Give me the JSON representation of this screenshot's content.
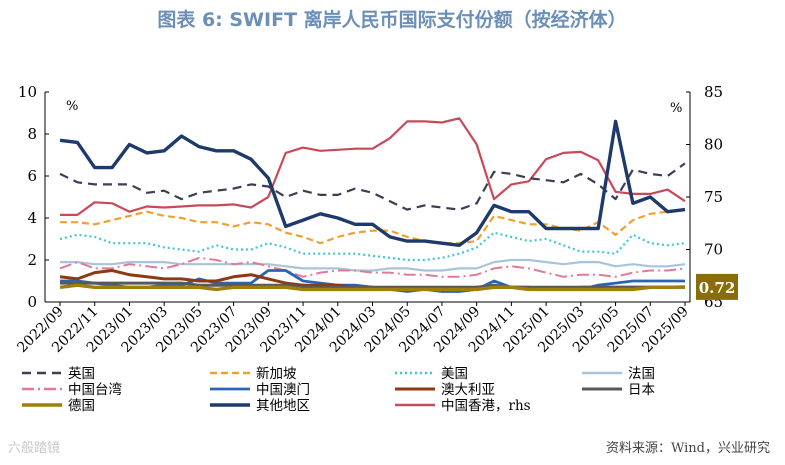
{
  "chart_data": {
    "type": "line",
    "title": "图表 6:  SWIFT 离岸人民币国际支付份额（按经济体）",
    "left_unit": "%",
    "right_unit": "%",
    "source": "资料来源：Wind，兴业研究",
    "watermark": "六般踏镜",
    "ylim_left": [
      0,
      10
    ],
    "yticks_left": [
      "0",
      "2",
      "4",
      "6",
      "8",
      "10"
    ],
    "ylim_right": [
      65,
      85
    ],
    "yticks_right": [
      "65",
      "70",
      "75",
      "80",
      "85"
    ],
    "x_labels": [
      "2022/09",
      "2022/11",
      "2023/01",
      "2023/03",
      "2023/05",
      "2023/07",
      "2023/09",
      "2023/11",
      "2024/01",
      "2024/03",
      "2024/05",
      "2024/07",
      "2024/09",
      "2024/11",
      "2025/01",
      "2025/03",
      "2025/05",
      "2025/07",
      "2025/09"
    ],
    "end_label": "0.72",
    "series": [
      {
        "key": "uk",
        "name": "英国",
        "color": "#3d3d55",
        "dash": "9,6",
        "width": 2.2,
        "axis": "left",
        "values": [
          6.1,
          5.7,
          5.6,
          5.6,
          5.6,
          5.2,
          5.3,
          4.9,
          5.2,
          5.3,
          5.4,
          5.6,
          5.5,
          5.0,
          5.3,
          5.1,
          5.1,
          5.4,
          5.2,
          4.8,
          4.4,
          4.6,
          4.5,
          4.4,
          4.7,
          6.2,
          6.1,
          5.9,
          5.8,
          5.7,
          6.1,
          5.6,
          4.9,
          6.3,
          6.1,
          6.0,
          6.6
        ]
      },
      {
        "key": "singapore",
        "name": "新加坡",
        "color": "#f0a030",
        "dash": "7,4",
        "width": 2.2,
        "axis": "left",
        "values": [
          3.8,
          3.8,
          3.7,
          3.9,
          4.1,
          4.3,
          4.1,
          4.0,
          3.8,
          3.8,
          3.6,
          3.8,
          3.7,
          3.3,
          3.1,
          2.8,
          3.1,
          3.3,
          3.4,
          3.4,
          3.1,
          2.9,
          2.8,
          2.8,
          2.9,
          4.1,
          3.9,
          3.7,
          3.7,
          3.5,
          3.4,
          3.8,
          3.2,
          3.9,
          4.2,
          4.3,
          4.4
        ]
      },
      {
        "key": "us",
        "name": "美国",
        "color": "#3cc6d6",
        "dash": "2,3",
        "width": 2.2,
        "axis": "left",
        "values": [
          3.0,
          3.2,
          3.1,
          2.8,
          2.8,
          2.8,
          2.6,
          2.5,
          2.4,
          2.7,
          2.5,
          2.5,
          2.8,
          2.6,
          2.3,
          2.3,
          2.3,
          2.3,
          2.2,
          2.1,
          2.0,
          2.0,
          2.1,
          2.3,
          2.6,
          3.3,
          3.1,
          2.9,
          3.0,
          2.7,
          2.4,
          2.4,
          2.3,
          3.2,
          2.8,
          2.7,
          2.8
        ]
      },
      {
        "key": "france",
        "name": "法国",
        "color": "#a9c3db",
        "dash": "",
        "width": 2.2,
        "axis": "left",
        "values": [
          1.9,
          1.9,
          1.8,
          1.8,
          1.9,
          1.9,
          1.9,
          1.8,
          1.8,
          1.8,
          1.8,
          1.8,
          1.8,
          1.7,
          1.6,
          1.6,
          1.6,
          1.5,
          1.5,
          1.6,
          1.6,
          1.5,
          1.5,
          1.6,
          1.6,
          1.9,
          2.0,
          2.0,
          1.9,
          1.8,
          1.9,
          1.9,
          1.7,
          1.8,
          1.7,
          1.7,
          1.8
        ]
      },
      {
        "key": "taiwan",
        "name": "中国台湾",
        "color": "#e27a96",
        "dash": "12,4,2,4",
        "width": 2.0,
        "axis": "left",
        "values": [
          1.6,
          1.9,
          1.6,
          1.6,
          1.8,
          1.7,
          1.6,
          1.8,
          2.1,
          2.0,
          1.8,
          1.9,
          1.7,
          1.5,
          1.2,
          1.4,
          1.5,
          1.5,
          1.4,
          1.4,
          1.3,
          1.3,
          1.2,
          1.2,
          1.3,
          1.6,
          1.7,
          1.6,
          1.4,
          1.2,
          1.3,
          1.3,
          1.2,
          1.4,
          1.5,
          1.5,
          1.6
        ]
      },
      {
        "key": "macau",
        "name": "中国澳门",
        "color": "#2a65b4",
        "dash": "",
        "width": 2.8,
        "axis": "left",
        "values": [
          1.0,
          1.0,
          0.9,
          0.8,
          0.7,
          0.7,
          0.8,
          0.8,
          1.1,
          0.9,
          0.9,
          0.9,
          1.5,
          1.5,
          1.0,
          0.9,
          0.8,
          0.8,
          0.7,
          0.6,
          0.5,
          0.6,
          0.5,
          0.5,
          0.6,
          1.0,
          0.7,
          0.6,
          0.6,
          0.6,
          0.6,
          0.8,
          0.9,
          1.0,
          1.0,
          1.0,
          1.0
        ]
      },
      {
        "key": "australia",
        "name": "澳大利亚",
        "color": "#8b3a12",
        "dash": "",
        "width": 3.0,
        "axis": "left",
        "values": [
          1.2,
          1.1,
          1.4,
          1.5,
          1.3,
          1.2,
          1.1,
          1.1,
          1.0,
          1.0,
          1.2,
          1.3,
          1.1,
          0.9,
          0.8,
          0.8,
          0.8,
          0.7,
          0.7,
          0.6,
          0.6,
          0.6,
          0.6,
          0.6,
          0.7,
          0.7,
          0.7,
          0.7,
          0.6,
          0.6,
          0.7,
          0.7,
          0.7,
          0.7,
          0.7,
          0.7,
          0.7
        ]
      },
      {
        "key": "japan",
        "name": "日本",
        "color": "#595959",
        "dash": "",
        "width": 3.0,
        "axis": "left",
        "values": [
          0.9,
          0.9,
          0.9,
          0.9,
          0.9,
          0.9,
          0.9,
          0.9,
          0.8,
          0.8,
          0.8,
          0.8,
          0.8,
          0.8,
          0.7,
          0.7,
          0.7,
          0.7,
          0.7,
          0.7,
          0.7,
          0.7,
          0.7,
          0.7,
          0.7,
          0.8,
          0.7,
          0.7,
          0.7,
          0.7,
          0.7,
          0.7,
          0.7,
          0.7,
          0.7,
          0.7,
          0.7
        ]
      },
      {
        "key": "germany",
        "name": "德国",
        "color": "#9e7f0b",
        "dash": "",
        "width": 3.4,
        "axis": "left",
        "values": [
          0.7,
          0.8,
          0.7,
          0.7,
          0.7,
          0.7,
          0.7,
          0.7,
          0.7,
          0.6,
          0.7,
          0.7,
          0.7,
          0.7,
          0.6,
          0.6,
          0.6,
          0.6,
          0.6,
          0.6,
          0.6,
          0.6,
          0.6,
          0.6,
          0.6,
          0.7,
          0.7,
          0.6,
          0.6,
          0.6,
          0.6,
          0.6,
          0.6,
          0.6,
          0.7,
          0.7,
          0.72
        ]
      },
      {
        "key": "other",
        "name": "其他地区",
        "color": "#1e3a6c",
        "dash": "",
        "width": 3.4,
        "axis": "left",
        "values": [
          7.7,
          7.6,
          6.4,
          6.4,
          7.5,
          7.1,
          7.2,
          7.9,
          7.4,
          7.2,
          7.2,
          6.8,
          5.9,
          3.6,
          3.9,
          4.2,
          4.0,
          3.7,
          3.7,
          3.1,
          2.9,
          2.9,
          2.8,
          2.7,
          3.3,
          4.6,
          4.3,
          4.3,
          3.5,
          3.5,
          3.5,
          3.5,
          8.6,
          4.7,
          5.0,
          4.3,
          4.4
        ]
      },
      {
        "key": "hongkong",
        "name": "中国香港，rhs",
        "color": "#c84a5a",
        "dash": "",
        "width": 2.2,
        "axis": "right",
        "values": [
          73.3,
          73.3,
          74.5,
          74.4,
          73.6,
          74.1,
          74.0,
          74.1,
          74.2,
          74.2,
          74.3,
          74.0,
          75.0,
          79.2,
          79.7,
          79.4,
          79.5,
          79.6,
          79.6,
          80.6,
          82.2,
          82.2,
          82.1,
          82.5,
          80.0,
          74.8,
          76.2,
          76.5,
          78.6,
          79.2,
          79.3,
          78.5,
          75.5,
          75.3,
          75.3,
          75.7,
          74.6
        ]
      }
    ]
  }
}
